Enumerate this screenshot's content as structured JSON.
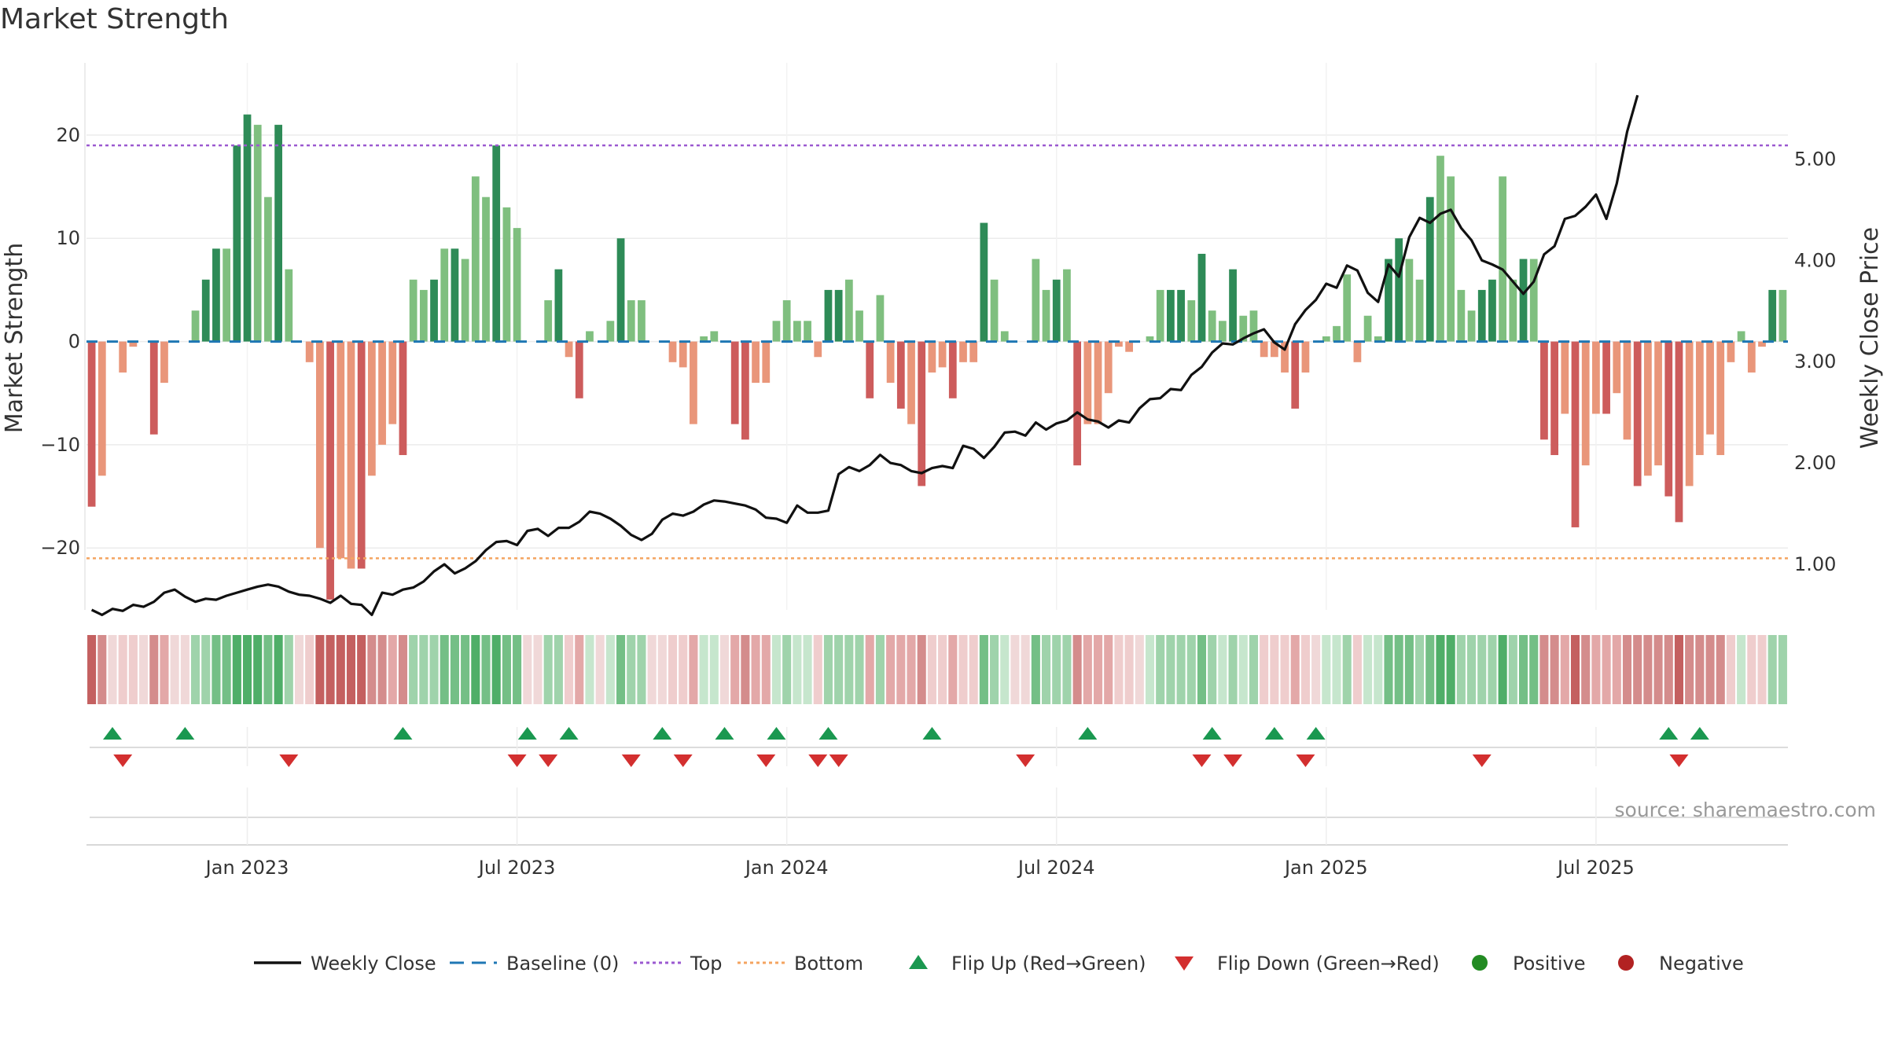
{
  "title": "Market Strength",
  "source": "source: sharemaestro.com",
  "chart_data": {
    "type": "bar",
    "y_left_label": "Market Strength",
    "y_right_label": "Weekly Close Price",
    "y_left_ticks": [
      "20",
      "10",
      "0",
      "−10",
      "−20"
    ],
    "y_left_tick_values": [
      20,
      10,
      0,
      -10,
      -20
    ],
    "y_right_ticks": [
      "5.00",
      "4.00",
      "3.00",
      "2.00",
      "1.00"
    ],
    "y_right_tick_values": [
      5,
      4,
      3,
      2,
      1
    ],
    "y_left_range": [
      -26,
      27
    ],
    "y_right_range": [
      0.55,
      5.95
    ],
    "x_ticks": [
      "Jan 2023",
      "Jul 2023",
      "Jan 2024",
      "Jul 2024",
      "Jan 2025",
      "Jul 2025"
    ],
    "x_tick_weeks": [
      15,
      41,
      67,
      93,
      119,
      145
    ],
    "top_line": 19,
    "bottom_line": -21,
    "strength": [
      -16,
      -13,
      0,
      -3,
      -0.5,
      0,
      -9,
      -4,
      0,
      0,
      3,
      6,
      9,
      9,
      19,
      22,
      21,
      14,
      21,
      7,
      0,
      -2,
      -20,
      -25,
      -21,
      -22,
      -22,
      -13,
      -10,
      -8,
      -11,
      6,
      5,
      6,
      9,
      9,
      8,
      16,
      14,
      19,
      13,
      11,
      0,
      0,
      4,
      7,
      -1.5,
      -5.5,
      1,
      0,
      2,
      10,
      4,
      4,
      0,
      0,
      -2,
      -2.5,
      -8,
      0.5,
      1,
      0,
      -8,
      -9.5,
      -4,
      -4,
      2,
      4,
      2,
      2,
      -1.5,
      5,
      5,
      6,
      3,
      -5.5,
      4.5,
      -4,
      -6.5,
      -8,
      -14,
      -3,
      -2.5,
      -5.5,
      -2,
      -2,
      11.5,
      6,
      1,
      0,
      0,
      8,
      5,
      6,
      7,
      -12,
      -8,
      -8,
      -5,
      -0.5,
      -1,
      0,
      0.5,
      5,
      5,
      5,
      4,
      8.5,
      3,
      2,
      7,
      2.5,
      3,
      -1.5,
      -1.5,
      -3,
      -6.5,
      -3,
      0,
      0.5,
      1.5,
      6.5,
      -2,
      2.5,
      0.5,
      8,
      10,
      8,
      6,
      14,
      18,
      16,
      5,
      3,
      5,
      6,
      16,
      6,
      8,
      8,
      -9.5,
      -11,
      -7,
      -18,
      -12,
      -7,
      -7,
      -5,
      -9.5,
      -14,
      -13,
      -12,
      -15,
      -17.5,
      -14,
      -11,
      -9,
      -11,
      -2,
      1,
      -3,
      -0.5,
      5,
      5
    ],
    "weekly_close": [
      0.55,
      0.5,
      0.56,
      0.54,
      0.6,
      0.58,
      0.63,
      0.72,
      0.75,
      0.68,
      0.63,
      0.66,
      0.65,
      0.69,
      0.72,
      0.75,
      0.78,
      0.8,
      0.78,
      0.73,
      0.7,
      0.69,
      0.66,
      0.62,
      0.69,
      0.61,
      0.6,
      0.5,
      0.72,
      0.7,
      0.75,
      0.77,
      0.83,
      0.93,
      1.0,
      0.91,
      0.96,
      1.03,
      1.14,
      1.22,
      1.23,
      1.19,
      1.33,
      1.35,
      1.28,
      1.36,
      1.36,
      1.42,
      1.52,
      1.5,
      1.45,
      1.38,
      1.29,
      1.24,
      1.3,
      1.44,
      1.5,
      1.48,
      1.52,
      1.59,
      1.63,
      1.62,
      1.6,
      1.58,
      1.54,
      1.46,
      1.45,
      1.41,
      1.58,
      1.51,
      1.51,
      1.53,
      1.89,
      1.96,
      1.92,
      1.98,
      2.08,
      2.0,
      1.98,
      1.92,
      1.9,
      1.95,
      1.97,
      1.95,
      2.17,
      2.14,
      2.05,
      2.16,
      2.3,
      2.31,
      2.27,
      2.4,
      2.33,
      2.39,
      2.42,
      2.5,
      2.43,
      2.41,
      2.35,
      2.42,
      2.4,
      2.54,
      2.63,
      2.64,
      2.73,
      2.72,
      2.87,
      2.95,
      3.09,
      3.18,
      3.17,
      3.23,
      3.28,
      3.32,
      3.19,
      3.12,
      3.37,
      3.51,
      3.61,
      3.77,
      3.73,
      3.95,
      3.9,
      3.68,
      3.59,
      3.96,
      3.84,
      4.23,
      4.42,
      4.37,
      4.46,
      4.5,
      4.32,
      4.2,
      4.0,
      3.96,
      3.91,
      3.79,
      3.67,
      3.79,
      4.06,
      4.14,
      4.41,
      4.44,
      4.53,
      4.65,
      4.41,
      4.76,
      5.27,
      5.63
    ],
    "sentiment_strip": [
      -16,
      -13,
      0,
      -3,
      -0.5,
      0,
      -9,
      -4,
      0,
      0,
      3,
      6,
      9,
      9,
      19,
      22,
      21,
      14,
      21,
      7,
      0,
      -2,
      -20,
      -25,
      -21,
      -22,
      -22,
      -13,
      -10,
      -8,
      -11,
      6,
      5,
      6,
      9,
      9,
      8,
      16,
      14,
      19,
      13,
      11,
      0,
      0,
      4,
      7,
      -1.5,
      -5.5,
      1,
      0,
      2,
      10,
      4,
      4,
      0,
      0,
      -2,
      -2.5,
      -8,
      0.5,
      1,
      0,
      -8,
      -9.5,
      -4,
      -4,
      2,
      4,
      2,
      2,
      -1.5,
      5,
      5,
      6,
      3,
      -5.5,
      4.5,
      -4,
      -6.5,
      -8,
      -14,
      -3,
      -2.5,
      -5.5,
      -2,
      -2,
      11.5,
      6,
      1,
      0,
      0,
      8,
      5,
      6,
      7,
      -12,
      -8,
      -8,
      -5,
      -0.5,
      -1,
      0,
      0.5,
      5,
      5,
      5,
      4,
      8.5,
      3,
      2,
      7,
      2.5,
      3,
      -1.5,
      -1.5,
      -3,
      -6.5,
      -3,
      0,
      0.5,
      1.5,
      6.5,
      -2,
      2.5,
      0.5,
      8,
      10,
      8,
      6,
      14,
      18,
      16,
      5,
      3,
      5,
      6,
      16,
      6,
      8,
      8,
      -9.5,
      -11,
      -7,
      -18,
      -12,
      -7,
      -7,
      -5,
      -9.5,
      -14,
      -13,
      -12,
      -15,
      -17.5,
      -14,
      -11,
      -9,
      -11,
      -2,
      1,
      -3,
      -0.5,
      5,
      5
    ],
    "flip_up_weeks": [
      2,
      9,
      30,
      42,
      46,
      55,
      61,
      66,
      71,
      81,
      96,
      108,
      114,
      118,
      152,
      155
    ],
    "flip_down_weeks": [
      3,
      19,
      41,
      44,
      52,
      57,
      65,
      70,
      72,
      90,
      107,
      110,
      117,
      134,
      153
    ],
    "colors": {
      "strong_green": "#2e8b57",
      "light_green": "#7fbf7f",
      "strong_red": "#cd5c5c",
      "light_red": "#e9967a",
      "price_line": "#111111",
      "baseline": "#1f77b4",
      "top_line": "#9b59d0",
      "bottom_line": "#f4a460",
      "flip_up": "#1a9850",
      "flip_down": "#d32f2f",
      "positive": "#228b22",
      "negative": "#b22222"
    },
    "legend": [
      {
        "label": "Weekly Close",
        "kind": "line",
        "color": "#111111"
      },
      {
        "label": "Baseline (0)",
        "kind": "dash",
        "color": "#1f77b4"
      },
      {
        "label": "Top",
        "kind": "dot",
        "color": "#9b59d0"
      },
      {
        "label": "Bottom",
        "kind": "dot",
        "color": "#f4a460"
      },
      {
        "label": "Flip Up (Red→Green)",
        "kind": "tri-up",
        "color": "#1a9850"
      },
      {
        "label": "Flip Down (Green→Red)",
        "kind": "tri-down",
        "color": "#d32f2f"
      },
      {
        "label": "Positive",
        "kind": "circle",
        "color": "#228b22"
      },
      {
        "label": "Negative",
        "kind": "circle",
        "color": "#b22222"
      }
    ]
  }
}
